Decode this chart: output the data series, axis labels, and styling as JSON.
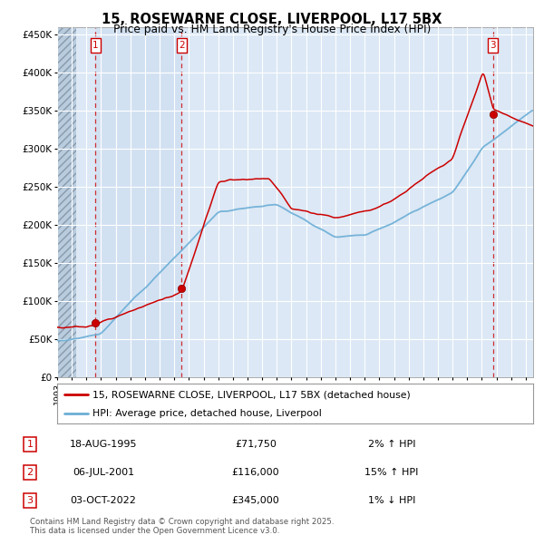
{
  "title": "15, ROSEWARNE CLOSE, LIVERPOOL, L17 5BX",
  "subtitle": "Price paid vs. HM Land Registry's House Price Index (HPI)",
  "sale_dates_num": [
    1995.63,
    2001.51,
    2022.75
  ],
  "sale_prices": [
    71750,
    116000,
    345000
  ],
  "sale_labels": [
    "1",
    "2",
    "3"
  ],
  "sale_info": [
    {
      "label": "1",
      "date": "18-AUG-1995",
      "price": "£71,750",
      "hpi": "2% ↑ HPI"
    },
    {
      "label": "2",
      "date": "06-JUL-2001",
      "price": "£116,000",
      "hpi": "15% ↑ HPI"
    },
    {
      "label": "3",
      "date": "03-OCT-2022",
      "price": "£345,000",
      "hpi": "1% ↓ HPI"
    }
  ],
  "legend_line1": "15, ROSEWARNE CLOSE, LIVERPOOL, L17 5BX (detached house)",
  "legend_line2": "HPI: Average price, detached house, Liverpool",
  "footer1": "Contains HM Land Registry data © Crown copyright and database right 2025.",
  "footer2": "This data is licensed under the Open Government Licence v3.0.",
  "hpi_color": "#6baed6",
  "sale_line_color": "#cc0000",
  "sale_dot_color": "#cc0000",
  "vline_color": "#cc0000",
  "background_plot": "#dce8f5",
  "hatch_bg": "#c8d8e8",
  "background_fig": "#ffffff",
  "ylim": [
    0,
    460000
  ],
  "yticks": [
    0,
    50000,
    100000,
    150000,
    200000,
    250000,
    300000,
    350000,
    400000,
    450000
  ],
  "ytick_labels": [
    "£0",
    "£50K",
    "£100K",
    "£150K",
    "£200K",
    "£250K",
    "£300K",
    "£350K",
    "£400K",
    "£450K"
  ],
  "xstart": 1993,
  "xend": 2025.5
}
